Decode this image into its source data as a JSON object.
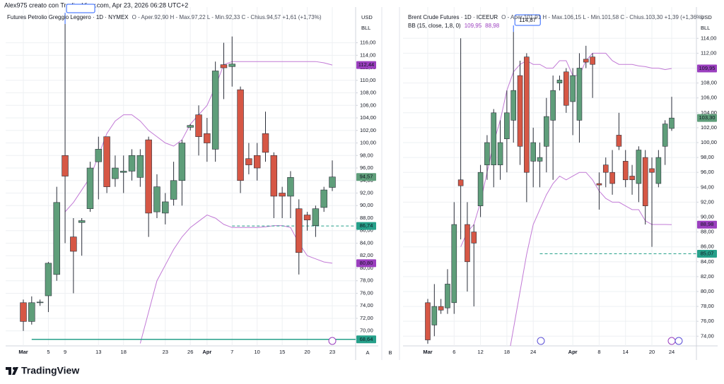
{
  "header": "Alex975 creato con TradingView.com, Apr 23, 2026 06:28 UTC+2",
  "logo": "TradingView",
  "scale_buttons": [
    "A",
    "B"
  ],
  "chart_data": [
    {
      "type": "candlestick",
      "title": "Futures Petrolio Greggio Leggero · 1D · NYMEX",
      "ohlc": "O - Aper.92,90  H - Max.97,22  L - Min.92,33  C - Chius.94,57  +1,61 (+1,73%)",
      "currency": "USD",
      "unit": "BLL",
      "categories": [
        "Mar",
        null,
        null,
        "5",
        null,
        "9",
        null,
        null,
        null,
        "13",
        null,
        null,
        "18",
        null,
        null,
        null,
        null,
        "23",
        null,
        null,
        "26",
        null,
        "Apr",
        null,
        null,
        "7",
        null,
        null,
        "10",
        null,
        null,
        "15",
        null,
        null,
        "20",
        null,
        null,
        "23"
      ],
      "open": [
        74.5,
        71.5,
        74.6,
        75.6,
        79,
        98,
        85,
        87.3,
        89.5,
        97,
        101,
        94.3,
        95.3,
        95.5,
        94.5,
        100.5,
        89,
        88.8,
        91,
        94,
        102.5,
        104.5,
        101.5,
        99,
        112.5,
        112.2,
        108.5,
        97.5,
        98,
        101.5,
        98,
        92,
        91.5,
        89.5,
        88.5,
        86.8,
        89.7,
        92.9
      ],
      "high": [
        75,
        75.5,
        75,
        81,
        93,
        119,
        88,
        88,
        97,
        101,
        101,
        98,
        98,
        99,
        99,
        101,
        95,
        92,
        97,
        100.5,
        103,
        106,
        104,
        113,
        116,
        117,
        109,
        100,
        100,
        105,
        98.5,
        93,
        95.5,
        91,
        89,
        90,
        93,
        97.22
      ],
      "low": [
        70,
        71,
        74,
        73,
        78,
        84,
        76,
        82,
        89,
        91,
        92,
        93,
        92,
        94,
        93,
        85,
        88,
        87,
        90,
        90,
        102,
        98,
        97,
        97,
        107,
        109,
        92,
        95,
        94,
        97,
        88,
        88,
        88,
        79,
        86,
        85,
        89,
        92.33
      ],
      "close": [
        71.5,
        74.5,
        74.6,
        80.8,
        90.5,
        94.7,
        82.7,
        87.6,
        96,
        99,
        93,
        96,
        95.5,
        98,
        98,
        88.8,
        93,
        90.6,
        94,
        100,
        102.8,
        101,
        100,
        111.5,
        112,
        112.6,
        94,
        96.5,
        96,
        98.5,
        91.5,
        91.5,
        94.5,
        82.5,
        87.7,
        89.5,
        92.5,
        94.57
      ],
      "up_color": "#5f9e7a",
      "down_color": "#d65745",
      "bands": {
        "color": "#c27ad6",
        "upper": [
          null,
          null,
          null,
          null,
          null,
          89,
          90.5,
          92.5,
          94.5,
          98,
          101.5,
          103.5,
          104.5,
          104.5,
          103.5,
          102,
          101,
          100,
          99.5,
          100.5,
          103,
          104.5,
          106,
          109,
          112.5,
          113,
          113,
          113,
          113,
          113,
          113,
          113,
          113,
          113,
          113,
          113,
          112.8,
          112.44
        ],
        "lower": [
          null,
          null,
          null,
          null,
          null,
          null,
          null,
          null,
          null,
          null,
          null,
          null,
          null,
          null,
          68,
          73,
          78,
          80.5,
          83,
          85,
          86.5,
          87.5,
          88.5,
          88,
          87,
          86.5,
          86.5,
          86.5,
          86.5,
          86.6,
          86.8,
          86.8,
          86.5,
          84,
          82,
          81.5,
          81,
          80.8
        ]
      },
      "ylim": [
        67.6,
        121.7
      ],
      "yticks": [
        {
          "value": 70,
          "label": "70,00"
        },
        {
          "value": 72,
          "label": "72,00"
        },
        {
          "value": 74,
          "label": "74,00"
        },
        {
          "value": 76,
          "label": "76,00"
        },
        {
          "value": 78,
          "label": "78,00"
        },
        {
          "value": 80,
          "label": "80,00"
        },
        {
          "value": 82,
          "label": "82,00"
        },
        {
          "value": 84,
          "label": "84,00"
        },
        {
          "value": 86,
          "label": "86,00"
        },
        {
          "value": 88,
          "label": "88,00"
        },
        {
          "value": 90,
          "label": "90,00"
        },
        {
          "value": 92,
          "label": "92,00"
        },
        {
          "value": 94,
          "label": "94,00"
        },
        {
          "value": 96,
          "label": "96,00"
        },
        {
          "value": 98,
          "label": "98,00"
        },
        {
          "value": 100,
          "label": "100,00"
        },
        {
          "value": 102,
          "label": "102,00"
        },
        {
          "value": 104,
          "label": "104,00"
        },
        {
          "value": 106,
          "label": "106,00"
        },
        {
          "value": 108,
          "label": "108,00"
        },
        {
          "value": 110,
          "label": "110,00"
        },
        {
          "value": 112,
          "label": "112,00"
        },
        {
          "value": 114,
          "label": "114,00"
        },
        {
          "value": 116,
          "label": "116,00"
        }
      ],
      "grid": true,
      "price_tags": [
        {
          "value": 112.44,
          "label": "112,44",
          "color": "#9b3fbf"
        },
        {
          "value": 94.57,
          "label": "94,57",
          "color": "#5f9e7a"
        },
        {
          "value": 86.74,
          "label": "86,74",
          "color": "#26a08a",
          "line": "dashed"
        },
        {
          "value": 80.8,
          "label": "80,80",
          "color": "#9b3fbf"
        },
        {
          "value": 68.64,
          "label": "68,64",
          "color": "#26a08a",
          "line": "solid"
        }
      ]
    },
    {
      "type": "candlestick",
      "title": "Brent Crude Futures · 1D · ICEEUR",
      "ohlc": "O - Aper.101,91  H - Max.106,15  L - Min.101,58  C - Chius.103,30  +1,39 (+1,36%)",
      "currency": "USD",
      "unit": "BLL",
      "categories": [
        "Mar",
        null,
        null,
        null,
        "6",
        null,
        null,
        null,
        "12",
        null,
        null,
        null,
        "18",
        null,
        null,
        null,
        "24",
        null,
        null,
        null,
        null,
        null,
        "Apr",
        null,
        null,
        null,
        "8",
        null,
        null,
        null,
        "14",
        null,
        null,
        null,
        "20",
        null,
        null,
        "24"
      ],
      "open": [
        78.5,
        75.5,
        78,
        77.8,
        78.5,
        95,
        89,
        88,
        91.5,
        97,
        97,
        97,
        100.5,
        103,
        109,
        111.5,
        97.5,
        97.5,
        99.5,
        103,
        108,
        109.5,
        105.5,
        103,
        111.2,
        111.5,
        94.5,
        97,
        96,
        101,
        97.5,
        95.5,
        94.5,
        98,
        96.5,
        94.5,
        99.5,
        101.9
      ],
      "high": [
        79,
        81,
        79,
        83,
        92,
        114,
        92,
        89,
        97,
        101,
        104.5,
        103,
        107,
        114.87,
        111,
        112,
        102,
        100,
        106,
        109,
        109,
        110,
        110,
        112,
        113,
        112,
        96,
        98,
        99,
        104,
        99,
        97,
        99.5,
        99,
        98,
        99,
        103,
        106.15
      ],
      "low": [
        73,
        74,
        77,
        77,
        77,
        87,
        80,
        78,
        90,
        95,
        94,
        95,
        96,
        100,
        97,
        92,
        94,
        94,
        96,
        95,
        107,
        104,
        101,
        100,
        110,
        106,
        91,
        94,
        93,
        99,
        94,
        93,
        92,
        89,
        86,
        94,
        97,
        101.58
      ],
      "close": [
        73.5,
        78,
        77.5,
        81,
        89,
        94.2,
        84,
        86.5,
        96,
        100,
        104,
        100,
        104,
        107,
        99.5,
        96,
        100,
        98,
        103.5,
        107,
        108.4,
        105,
        109,
        110,
        110.8,
        110.5,
        94.3,
        96,
        94.5,
        99.5,
        95,
        95,
        99,
        91.5,
        96,
        98,
        102.5,
        103.3
      ],
      "up_color": "#5f9e7a",
      "down_color": "#d65745",
      "bands": {
        "name": "BB (15, close, 1,8, 0)",
        "color": "#c27ad6",
        "upper": [
          null,
          null,
          null,
          null,
          null,
          86,
          88,
          89,
          92,
          96,
          100,
          103,
          107,
          109.5,
          110.5,
          111,
          110.5,
          110.5,
          110,
          110,
          111,
          111,
          109,
          109,
          111,
          112,
          112,
          112,
          111,
          110.5,
          110.5,
          110.5,
          110.3,
          110.2,
          110,
          110,
          109.8,
          109.95
        ],
        "lower": [
          null,
          null,
          null,
          null,
          null,
          null,
          null,
          null,
          null,
          null,
          null,
          null,
          70,
          75,
          80,
          85,
          89,
          91,
          93,
          94.5,
          95.5,
          95,
          95.5,
          96,
          96,
          95,
          93.5,
          92.5,
          92,
          92,
          91.5,
          91,
          91,
          89.5,
          89,
          89,
          89,
          88.98
        ]
      },
      "ylim": [
        72.7,
        118.2
      ],
      "yticks": [
        {
          "value": 74,
          "label": "74,00"
        },
        {
          "value": 76,
          "label": "76,00"
        },
        {
          "value": 78,
          "label": "78,00"
        },
        {
          "value": 80,
          "label": "80,00"
        },
        {
          "value": 82,
          "label": "82,00"
        },
        {
          "value": 84,
          "label": "84,00"
        },
        {
          "value": 86,
          "label": "86,00"
        },
        {
          "value": 88,
          "label": "88,00"
        },
        {
          "value": 90,
          "label": "90,00"
        },
        {
          "value": 92,
          "label": "92,00"
        },
        {
          "value": 94,
          "label": "94,00"
        },
        {
          "value": 96,
          "label": "96,00"
        },
        {
          "value": 98,
          "label": "98,00"
        },
        {
          "value": 100,
          "label": "100,00"
        },
        {
          "value": 102,
          "label": "102,00"
        },
        {
          "value": 104,
          "label": "104,00"
        },
        {
          "value": 106,
          "label": "106,00"
        },
        {
          "value": 108,
          "label": "108,00"
        },
        {
          "value": 110,
          "label": "110,00"
        },
        {
          "value": 112,
          "label": "112,00"
        },
        {
          "value": 114,
          "label": "114,00"
        }
      ],
      "grid": true,
      "annotation": "114,87",
      "price_tags": [
        {
          "value": 109.95,
          "label": "109,95",
          "color": "#9b3fbf"
        },
        {
          "value": 103.3,
          "label": "103,30",
          "color": "#5f9e7a"
        },
        {
          "value": 88.98,
          "label": "88,98",
          "color": "#9b3fbf"
        },
        {
          "value": 85.07,
          "label": "85,07",
          "color": "#26a08a",
          "line": "dashed"
        }
      ]
    }
  ]
}
